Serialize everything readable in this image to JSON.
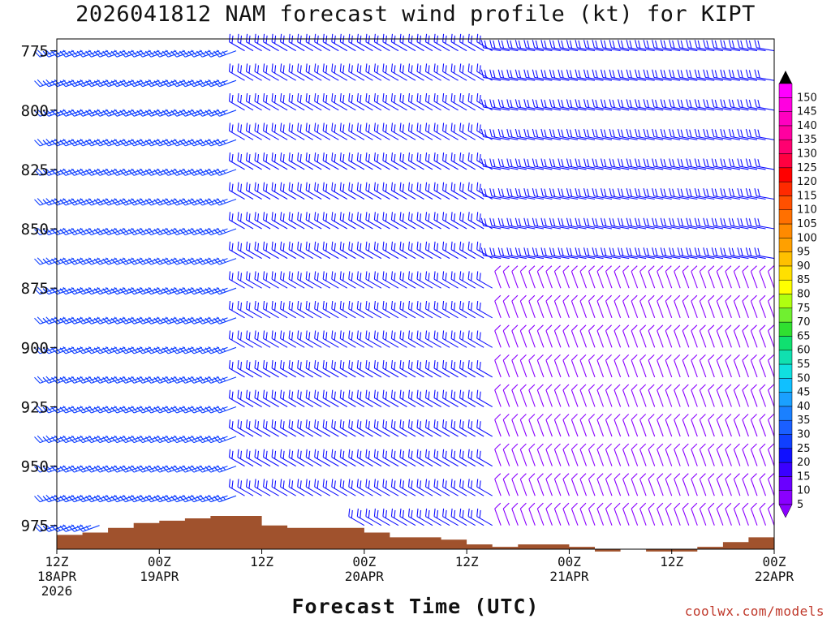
{
  "page_title": "2026041812 NAM forecast wind profile (kt) for KIPT",
  "credit": "coolwx.com/models",
  "chart_data": {
    "type": "wind-barb time-height",
    "title": "2026041812 NAM forecast wind profile (kt) for KIPT",
    "xlabel": "Forecast Time (UTC)",
    "ylabel": "",
    "ylim": [
      985,
      770
    ],
    "y_ticks": [
      775,
      800,
      825,
      850,
      875,
      900,
      925,
      950,
      975
    ],
    "x_hours_range": [
      0,
      84
    ],
    "x_ticks": [
      {
        "hour": 0,
        "label1": "12Z",
        "label2": "18APR",
        "label3": "2026"
      },
      {
        "hour": 12,
        "label1": "00Z",
        "label2": "19APR",
        "label3": ""
      },
      {
        "hour": 24,
        "label1": "12Z",
        "label2": "",
        "label3": ""
      },
      {
        "hour": 36,
        "label1": "00Z",
        "label2": "20APR",
        "label3": ""
      },
      {
        "hour": 48,
        "label1": "12Z",
        "label2": "",
        "label3": ""
      },
      {
        "hour": 60,
        "label1": "00Z",
        "label2": "21APR",
        "label3": ""
      },
      {
        "hour": 72,
        "label1": "12Z",
        "label2": "",
        "label3": ""
      },
      {
        "hour": 84,
        "label1": "00Z",
        "label2": "22APR",
        "label3": ""
      }
    ],
    "surface_pressure": [
      {
        "hour": 0,
        "p": 979
      },
      {
        "hour": 3,
        "p": 978
      },
      {
        "hour": 6,
        "p": 976
      },
      {
        "hour": 9,
        "p": 974
      },
      {
        "hour": 12,
        "p": 973
      },
      {
        "hour": 15,
        "p": 972
      },
      {
        "hour": 18,
        "p": 971
      },
      {
        "hour": 21,
        "p": 971
      },
      {
        "hour": 24,
        "p": 975
      },
      {
        "hour": 27,
        "p": 976
      },
      {
        "hour": 30,
        "p": 976
      },
      {
        "hour": 33,
        "p": 976
      },
      {
        "hour": 36,
        "p": 978
      },
      {
        "hour": 39,
        "p": 980
      },
      {
        "hour": 42,
        "p": 980
      },
      {
        "hour": 45,
        "p": 981
      },
      {
        "hour": 48,
        "p": 983
      },
      {
        "hour": 51,
        "p": 984
      },
      {
        "hour": 54,
        "p": 983
      },
      {
        "hour": 57,
        "p": 983
      },
      {
        "hour": 60,
        "p": 984
      },
      {
        "hour": 63,
        "p": 986
      },
      {
        "hour": 66,
        "p": 985
      },
      {
        "hour": 69,
        "p": 986
      },
      {
        "hour": 72,
        "p": 986
      },
      {
        "hour": 75,
        "p": 984
      },
      {
        "hour": 78,
        "p": 982
      },
      {
        "hour": 81,
        "p": 980
      },
      {
        "hour": 84,
        "p": 980
      }
    ],
    "colorbar": {
      "values": [
        5,
        10,
        15,
        20,
        25,
        30,
        35,
        40,
        45,
        50,
        55,
        60,
        65,
        70,
        75,
        80,
        85,
        90,
        95,
        100,
        105,
        110,
        115,
        120,
        125,
        130,
        135,
        140,
        145,
        150
      ],
      "colors": [
        "#8a00ff",
        "#6a00ff",
        "#3a00ff",
        "#1010ff",
        "#1040ff",
        "#1a5fff",
        "#1a80ff",
        "#1aa0ff",
        "#10c0ff",
        "#10e0e0",
        "#10e0b0",
        "#10e070",
        "#30e030",
        "#70f030",
        "#b0ff10",
        "#ffff00",
        "#ffe000",
        "#ffc000",
        "#ffa000",
        "#ff8a00",
        "#ff7000",
        "#ff5000",
        "#ff2a00",
        "#ff0000",
        "#ff0040",
        "#ff0070",
        "#ff00a0",
        "#ff00c0",
        "#ff00e0",
        "#ff00ff"
      ]
    },
    "wind_regimes": [
      {
        "hours": [
          0,
          21
        ],
        "levels": [
          770,
          985
        ],
        "dir": 250,
        "speed": 25
      },
      {
        "hours": [
          22,
          51
        ],
        "levels": [
          770,
          985
        ],
        "dir": 300,
        "speed": 20
      },
      {
        "hours": [
          52,
          84
        ],
        "levels": [
          770,
          870
        ],
        "dir": 280,
        "speed": 20
      },
      {
        "hours": [
          52,
          84
        ],
        "levels": [
          871,
          985
        ],
        "dir": 340,
        "speed": 8
      }
    ]
  }
}
